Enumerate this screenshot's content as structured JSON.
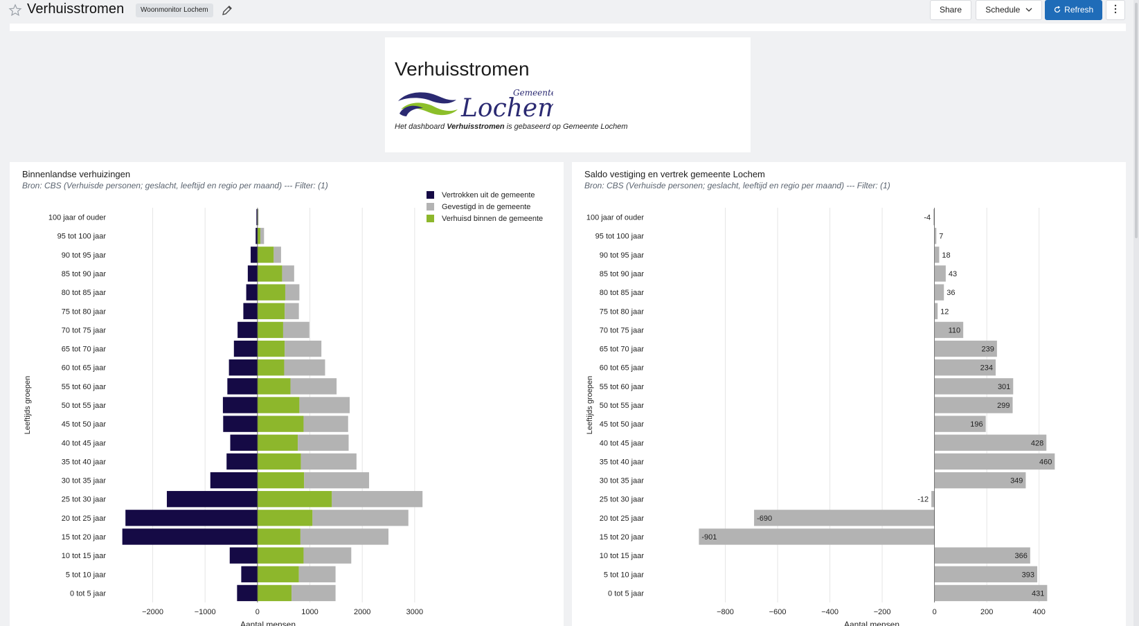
{
  "header": {
    "title": "Verhuisstromen",
    "tag": "Woonmonitor Lochem",
    "share_label": "Share",
    "schedule_label": "Schedule",
    "refresh_label": "Refresh"
  },
  "intro": {
    "title": "Verhuisstromen",
    "logo_small": "Gemeente",
    "logo_big": "Lochem",
    "desc_pre": "Het dashboard ",
    "desc_bold": "Verhuisstromen",
    "desc_post": " is gebaseerd op Gemeente Lochem"
  },
  "colors": {
    "vertrokken": "#150a45",
    "gevestigd": "#b3b3b3",
    "verhuisd": "#8db72c",
    "saldo": "#b3b3b3",
    "refresh": "#1f6cb8"
  },
  "chart_data": [
    {
      "type": "bar",
      "title": "Binnenlandse verhuizingen",
      "subtitle": "Bron: CBS (Verhuisde personen; geslacht, leeftijd en regio per maand) --- Filter: (1)",
      "xlabel": "Aantal mensen",
      "ylabel": "Leeftijds groepen",
      "xlim": [
        -2800,
        3200
      ],
      "xticks": [
        -2000,
        -1000,
        0,
        1000,
        2000,
        3000
      ],
      "xtick_labels": [
        "−2000",
        "−1000",
        "0",
        "1000",
        "2000",
        "3000"
      ],
      "legend_position": "top-right",
      "categories": [
        "100 jaar of ouder",
        "95 tot 100 jaar",
        "90 tot 95 jaar",
        "85 tot 90 jaar",
        "80 tot 85 jaar",
        "75 tot 80 jaar",
        "70 tot 75 jaar",
        "65 tot 70 jaar",
        "60 tot 65 jaar",
        "55 tot 60 jaar",
        "50 tot 55 jaar",
        "45 tot 50 jaar",
        "40 tot 45 jaar",
        "35 tot 40 jaar",
        "30 tot 35 jaar",
        "25 tot 30 jaar",
        "20 tot 25 jaar",
        "15 tot 20 jaar",
        "10 tot 15 jaar",
        "5 tot 10 jaar",
        "0 tot 5 jaar"
      ],
      "series": [
        {
          "name": "Vertrokken uit de gemeente",
          "values": [
            -20,
            -35,
            -130,
            -185,
            -215,
            -270,
            -380,
            -450,
            -545,
            -575,
            -660,
            -655,
            -520,
            -590,
            -900,
            -1730,
            -2520,
            -2580,
            -530,
            -310,
            -390
          ]
        },
        {
          "name": "Verhuisd binnen de gemeente",
          "values": [
            10,
            55,
            310,
            470,
            530,
            520,
            490,
            520,
            510,
            630,
            800,
            880,
            770,
            830,
            890,
            1420,
            1050,
            820,
            880,
            790,
            650
          ]
        },
        {
          "name": "Gevestigd in de gemeente",
          "values": [
            10,
            70,
            140,
            230,
            270,
            270,
            500,
            700,
            780,
            880,
            960,
            850,
            970,
            1060,
            1240,
            1730,
            1830,
            1680,
            910,
            700,
            840
          ]
        }
      ],
      "stacked": true
    },
    {
      "type": "bar",
      "title": "Saldo vestiging en vertrek gemeente Lochem",
      "subtitle": "Bron: CBS (Verhuisde personen; geslacht, leeftijd en regio per maand) --- Filter: (1)",
      "xlabel": "Aantal mensen",
      "ylabel": "Leeftijds groepen",
      "xlim": [
        -1000,
        520
      ],
      "xticks": [
        -800,
        -600,
        -400,
        -200,
        0,
        200,
        400
      ],
      "xtick_labels": [
        "−800",
        "−600",
        "−400",
        "−200",
        "0",
        "200",
        "400"
      ],
      "categories": [
        "100 jaar of ouder",
        "95 tot 100 jaar",
        "90 tot 95 jaar",
        "85 tot 90 jaar",
        "80 tot 85 jaar",
        "75 tot 80 jaar",
        "70 tot 75 jaar",
        "65 tot 70 jaar",
        "60 tot 65 jaar",
        "55 tot 60 jaar",
        "50 tot 55 jaar",
        "45 tot 50 jaar",
        "40 tot 45 jaar",
        "35 tot 40 jaar",
        "30 tot 35 jaar",
        "25 tot 30 jaar",
        "20 tot 25 jaar",
        "15 tot 20 jaar",
        "10 tot 15 jaar",
        "5 tot 10 jaar",
        "0 tot 5 jaar"
      ],
      "values": [
        -4,
        7,
        18,
        43,
        36,
        12,
        110,
        239,
        234,
        301,
        299,
        196,
        428,
        460,
        349,
        -12,
        -690,
        -901,
        366,
        393,
        431
      ]
    }
  ]
}
